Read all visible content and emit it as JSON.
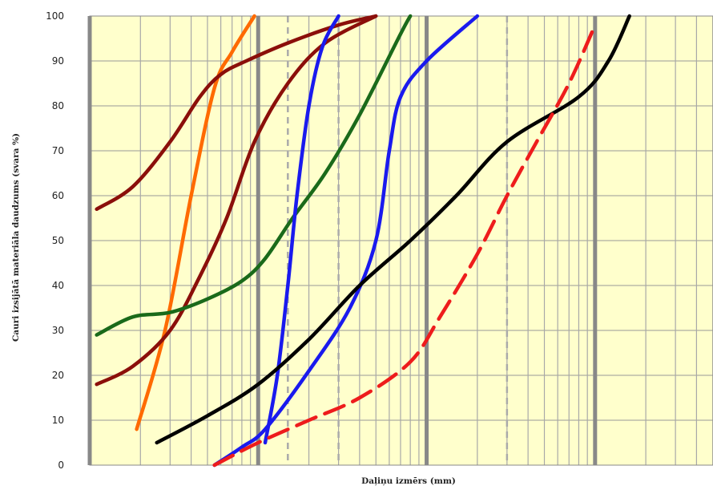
{
  "chart_data": {
    "type": "line",
    "title": "",
    "xlabel": "Daļiņu izmērs (mm)",
    "ylabel": "Cauri izsijātā materiāla daudzums (svara %)",
    "ylim": [
      0,
      100
    ],
    "y_ticks": [
      "0",
      "10",
      "20",
      "30",
      "40",
      "50",
      "60",
      "70",
      "80",
      "90",
      "100"
    ],
    "x_scale": "log",
    "x_tick_labels": [],
    "grid": true,
    "background": "#ffffcc",
    "colors": {
      "grid_major": "#888888",
      "grid_minor": "#a8a8a8",
      "grid_h": "#999999"
    },
    "series": [
      {
        "color": "#ff6a00",
        "dashed": false,
        "values": [
          [
            0.0019,
            8
          ],
          [
            0.0028,
            30
          ],
          [
            0.004,
            60
          ],
          [
            0.0055,
            84
          ],
          [
            0.007,
            92
          ],
          [
            0.0095,
            100
          ]
        ]
      },
      {
        "color": "#8b0f0a",
        "dashed": false,
        "values": [
          [
            0.0011,
            57
          ],
          [
            0.0018,
            62
          ],
          [
            0.003,
            72
          ],
          [
            0.0045,
            82
          ],
          [
            0.006,
            87
          ],
          [
            0.0085,
            90
          ],
          [
            0.015,
            94
          ],
          [
            0.03,
            98
          ],
          [
            0.05,
            100
          ]
        ]
      },
      {
        "color": "#8b0f0a",
        "dashed": false,
        "values": [
          [
            0.0011,
            18
          ],
          [
            0.0018,
            22
          ],
          [
            0.003,
            30
          ],
          [
            0.0045,
            42
          ],
          [
            0.0065,
            55
          ],
          [
            0.0095,
            72
          ],
          [
            0.015,
            85
          ],
          [
            0.025,
            94
          ],
          [
            0.05,
            100
          ]
        ]
      },
      {
        "color": "#1a6a1a",
        "dashed": false,
        "values": [
          [
            0.0011,
            29
          ],
          [
            0.0018,
            33
          ],
          [
            0.003,
            34
          ],
          [
            0.005,
            37
          ],
          [
            0.008,
            41
          ],
          [
            0.011,
            46
          ],
          [
            0.016,
            55
          ],
          [
            0.025,
            65
          ],
          [
            0.04,
            78
          ],
          [
            0.07,
            96
          ],
          [
            0.08,
            100
          ]
        ]
      },
      {
        "color": "#1a1aee",
        "dashed": false,
        "values": [
          [
            0.011,
            5
          ],
          [
            0.013,
            20
          ],
          [
            0.015,
            40
          ],
          [
            0.017,
            60
          ],
          [
            0.02,
            80
          ],
          [
            0.024,
            93
          ],
          [
            0.03,
            100
          ]
        ]
      },
      {
        "color": "#1a1aee",
        "dashed": false,
        "values": [
          [
            0.0055,
            0
          ],
          [
            0.008,
            4
          ],
          [
            0.011,
            8
          ],
          [
            0.02,
            21
          ],
          [
            0.035,
            35
          ],
          [
            0.05,
            50
          ],
          [
            0.06,
            70
          ],
          [
            0.07,
            82
          ],
          [
            0.1,
            90
          ],
          [
            0.2,
            100
          ]
        ]
      },
      {
        "color": "#000000",
        "dashed": false,
        "values": [
          [
            0.0025,
            5
          ],
          [
            0.005,
            11
          ],
          [
            0.01,
            18
          ],
          [
            0.02,
            28
          ],
          [
            0.04,
            40
          ],
          [
            0.08,
            50
          ],
          [
            0.15,
            60
          ],
          [
            0.3,
            72
          ],
          [
            0.8,
            82
          ],
          [
            1.2,
            90
          ],
          [
            1.6,
            100
          ]
        ]
      },
      {
        "color": "#ee1c1c",
        "dashed": true,
        "values": [
          [
            0.0055,
            0
          ],
          [
            0.01,
            5
          ],
          [
            0.02,
            10
          ],
          [
            0.04,
            15
          ],
          [
            0.08,
            23
          ],
          [
            0.12,
            33
          ],
          [
            0.2,
            47
          ],
          [
            0.3,
            60
          ],
          [
            0.45,
            72
          ],
          [
            0.7,
            85
          ],
          [
            1,
            98
          ]
        ]
      }
    ]
  }
}
